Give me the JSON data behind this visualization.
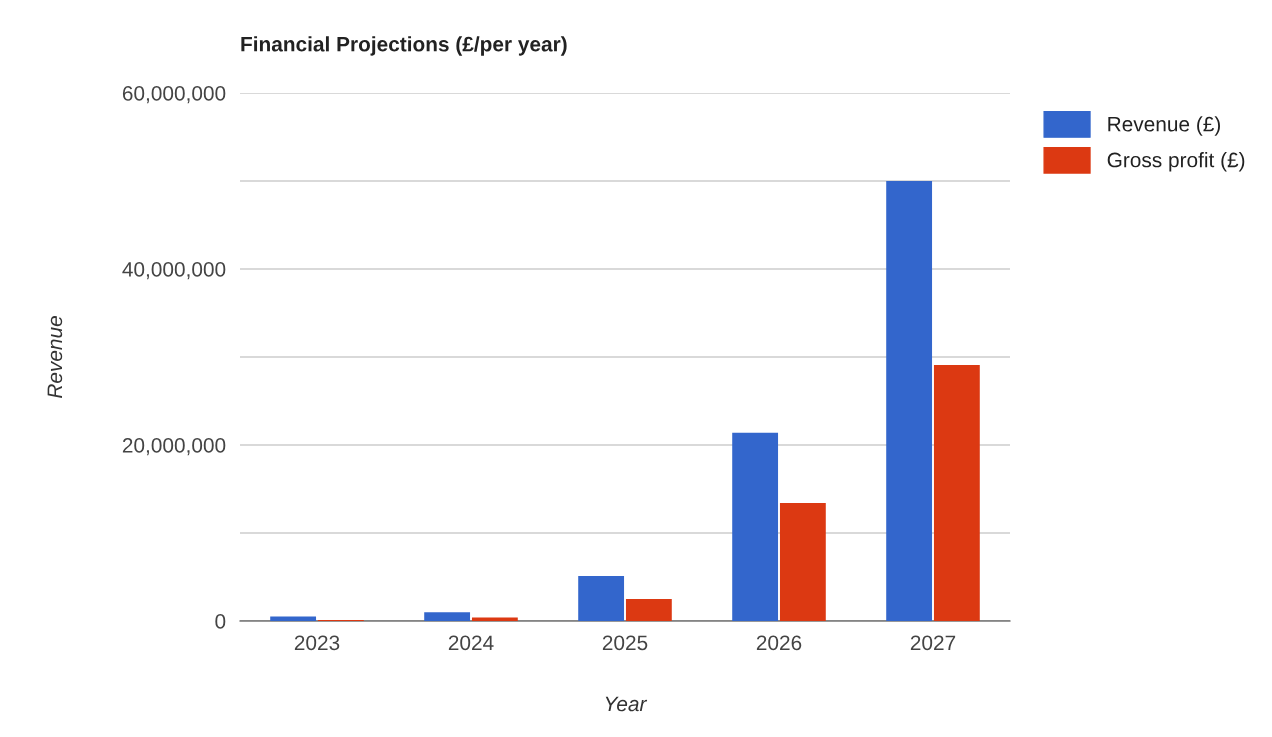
{
  "chart_data": {
    "type": "bar",
    "title": "Financial Projections (£/per year)",
    "xlabel": "Year",
    "ylabel": "Revenue",
    "categories": [
      "2023",
      "2024",
      "2025",
      "2026",
      "2027"
    ],
    "series": [
      {
        "name": "Revenue (£)",
        "color": "#3366cc",
        "values": [
          500000,
          1000000,
          5100000,
          21400000,
          50000000
        ]
      },
      {
        "name": "Gross profit (£)",
        "color": "#dc3912",
        "values": [
          100000,
          400000,
          2500000,
          13400000,
          29100000
        ]
      }
    ],
    "ylim": [
      0,
      60000000
    ],
    "yticks": [
      0,
      {
        "value": 10000000,
        "label": null
      },
      {
        "value": 20000000,
        "label": "20,000,000"
      },
      {
        "value": 30000000,
        "label": null
      },
      {
        "value": 40000000,
        "label": "40,000,000"
      },
      {
        "value": 50000000,
        "label": null
      },
      {
        "value": 60000000,
        "label": "60,000,000"
      }
    ],
    "grid": "y",
    "legend": "top right"
  }
}
